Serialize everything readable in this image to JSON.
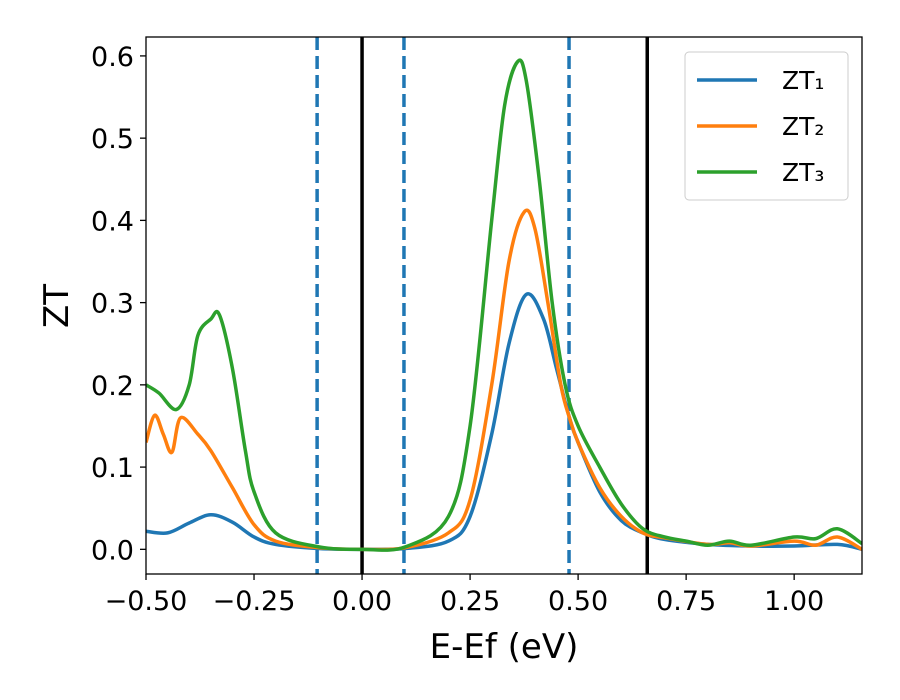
{
  "chart_data": {
    "type": "line",
    "title": "",
    "xlabel": "E-Ef (eV)",
    "xlabel_subscript": "f",
    "ylabel": "ZT",
    "xlim": [
      -0.5,
      1.157
    ],
    "ylim": [
      -0.03,
      0.623
    ],
    "grid": false,
    "legend_placement": "top-right",
    "xticks": [
      -0.5,
      -0.25,
      0.0,
      0.25,
      0.5,
      0.75,
      1.0
    ],
    "xtick_labels": [
      "−0.50",
      "−0.25",
      "0.00",
      "0.25",
      "0.50",
      "0.75",
      "1.00"
    ],
    "yticks": [
      0.0,
      0.1,
      0.2,
      0.3,
      0.4,
      0.5,
      0.6
    ],
    "ytick_labels": [
      "0.0",
      "0.1",
      "0.2",
      "0.3",
      "0.4",
      "0.5",
      "0.6"
    ],
    "vlines": [
      {
        "x": -0.104,
        "style": "dashed",
        "color": "#1f77b4"
      },
      {
        "x": 0.0,
        "style": "solid",
        "color": "#000000"
      },
      {
        "x": 0.097,
        "style": "dashed",
        "color": "#1f77b4"
      },
      {
        "x": 0.479,
        "style": "dashed",
        "color": "#1f77b4"
      },
      {
        "x": 0.66,
        "style": "solid",
        "color": "#000000"
      }
    ],
    "series": [
      {
        "name": "ZT₁",
        "color": "#1f77b4",
        "x": [
          -0.5,
          -0.45,
          -0.4,
          -0.35,
          -0.3,
          -0.25,
          -0.2,
          -0.1,
          0,
          0.1,
          0.2,
          0.25,
          0.3,
          0.34,
          0.38,
          0.42,
          0.45,
          0.48,
          0.5,
          0.55,
          0.6,
          0.65,
          0.7,
          0.8,
          0.9,
          1.0,
          1.1,
          1.157
        ],
        "y": [
          0.022,
          0.02,
          0.032,
          0.042,
          0.033,
          0.015,
          0.006,
          0.001,
          0,
          0.001,
          0.01,
          0.04,
          0.14,
          0.25,
          0.31,
          0.28,
          0.22,
          0.16,
          0.13,
          0.07,
          0.035,
          0.02,
          0.012,
          0.006,
          0.004,
          0.004,
          0.006,
          0.0
        ]
      },
      {
        "name": "ZT₂",
        "color": "#ff7f0e",
        "x": [
          -0.5,
          -0.48,
          -0.46,
          -0.44,
          -0.42,
          -0.38,
          -0.35,
          -0.3,
          -0.25,
          -0.2,
          -0.1,
          0,
          0.1,
          0.2,
          0.25,
          0.3,
          0.34,
          0.375,
          0.4,
          0.43,
          0.46,
          0.48,
          0.5,
          0.55,
          0.6,
          0.65,
          0.7,
          0.8,
          0.85,
          0.9,
          1.0,
          1.05,
          1.1,
          1.157
        ],
        "y": [
          0.13,
          0.163,
          0.14,
          0.118,
          0.16,
          0.14,
          0.12,
          0.075,
          0.03,
          0.01,
          0.002,
          0,
          0.002,
          0.02,
          0.06,
          0.2,
          0.35,
          0.41,
          0.39,
          0.3,
          0.2,
          0.16,
          0.13,
          0.075,
          0.04,
          0.02,
          0.014,
          0.006,
          0.008,
          0.004,
          0.01,
          0.005,
          0.015,
          0.0
        ]
      },
      {
        "name": "ZT₃",
        "color": "#2ca02c",
        "x": [
          -0.5,
          -0.47,
          -0.43,
          -0.4,
          -0.38,
          -0.35,
          -0.33,
          -0.3,
          -0.27,
          -0.25,
          -0.2,
          -0.1,
          0,
          0.1,
          0.2,
          0.25,
          0.3,
          0.33,
          0.36,
          0.38,
          0.41,
          0.44,
          0.47,
          0.5,
          0.55,
          0.6,
          0.65,
          0.7,
          0.75,
          0.8,
          0.85,
          0.9,
          1.0,
          1.05,
          1.1,
          1.157
        ],
        "y": [
          0.2,
          0.19,
          0.17,
          0.2,
          0.26,
          0.28,
          0.285,
          0.22,
          0.12,
          0.07,
          0.02,
          0.003,
          0,
          0.003,
          0.04,
          0.15,
          0.4,
          0.54,
          0.593,
          0.57,
          0.45,
          0.3,
          0.2,
          0.15,
          0.1,
          0.055,
          0.025,
          0.015,
          0.01,
          0.005,
          0.01,
          0.005,
          0.015,
          0.013,
          0.025,
          0.007
        ]
      }
    ]
  }
}
